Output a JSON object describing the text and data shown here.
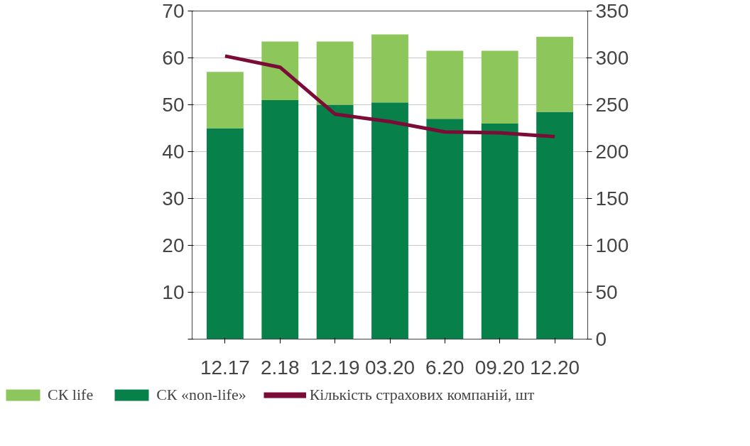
{
  "chart_data": {
    "type": "bar",
    "stacked": true,
    "categories": [
      "12.17",
      "2.18",
      "12.19",
      "03.20",
      "6.20",
      "09.20",
      "12.20"
    ],
    "series": [
      {
        "name": "СК «non-life»",
        "color": "#07804a",
        "values": [
          45,
          51,
          50,
          50.5,
          47,
          46,
          48.5
        ]
      },
      {
        "name": "СК life",
        "color": "#8dc65a",
        "values": [
          12,
          12.5,
          13.5,
          14.5,
          14.5,
          15.5,
          16
        ]
      },
      {
        "name": "Кількість страхових компаній, шт",
        "type": "line",
        "axis": "y2",
        "color": "#7b0c37",
        "values": [
          302,
          290,
          240,
          232,
          221,
          220,
          216
        ]
      }
    ],
    "ylim": [
      0,
      70
    ],
    "yticks": [
      {
        "value": 0,
        "label": null
      },
      10,
      20,
      30,
      40,
      50,
      60,
      70
    ],
    "y2lim": [
      0,
      350
    ],
    "y2ticks": [
      0,
      50,
      100,
      150,
      200,
      250,
      300,
      350
    ],
    "grid": "y",
    "legend": "bottom",
    "marker": "none",
    "line_style": "solid"
  }
}
